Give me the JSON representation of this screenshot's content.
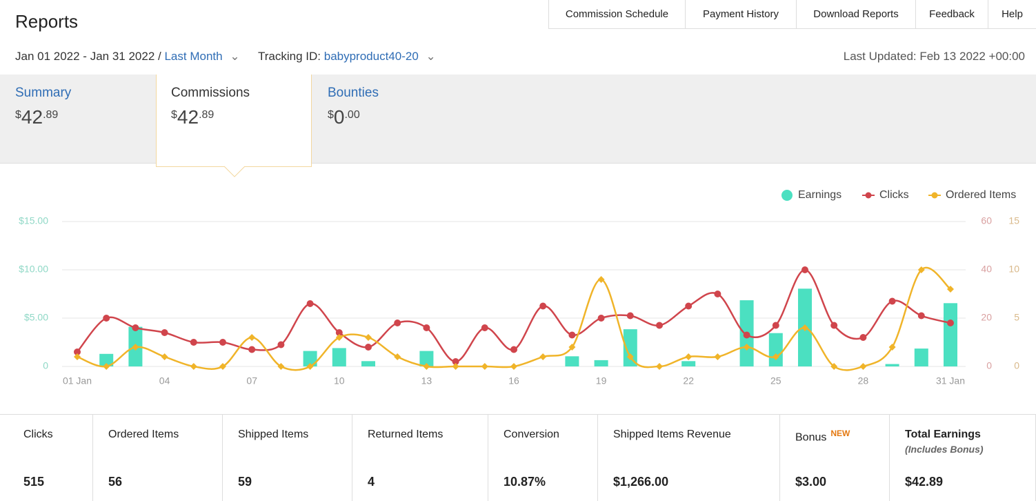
{
  "header": {
    "title": "Reports",
    "nav": [
      "Commission Schedule",
      "Payment History",
      "Download Reports",
      "Feedback",
      "Help"
    ]
  },
  "filters": {
    "date_range": "Jan 01 2022 - Jan 31 2022 /",
    "period": "Last Month",
    "tracking_label": "Tracking ID:",
    "tracking_id": "babyproduct40-20",
    "last_updated": "Last Updated: Feb 13 2022 +00:00"
  },
  "tabs": [
    {
      "name": "Summary",
      "currency": "$",
      "whole": "42",
      "cents": ".89"
    },
    {
      "name": "Commissions",
      "currency": "$",
      "whole": "42",
      "cents": ".89"
    },
    {
      "name": "Bounties",
      "currency": "$",
      "whole": "0",
      "cents": ".00"
    }
  ],
  "chart_data": {
    "type": "combo",
    "legend": "top-right",
    "grid": true,
    "x": [
      1,
      2,
      3,
      4,
      5,
      6,
      7,
      8,
      9,
      10,
      11,
      12,
      13,
      14,
      15,
      16,
      17,
      18,
      19,
      20,
      21,
      22,
      23,
      24,
      25,
      26,
      27,
      28,
      29,
      30,
      31
    ],
    "xlim": [
      1,
      31
    ],
    "xticks": [
      {
        "value": 1,
        "label": "01 Jan"
      },
      {
        "value": 4,
        "label": "04"
      },
      {
        "value": 7,
        "label": "07"
      },
      {
        "value": 10,
        "label": "10"
      },
      {
        "value": 13,
        "label": "13"
      },
      {
        "value": 16,
        "label": "16"
      },
      {
        "value": 19,
        "label": "19"
      },
      {
        "value": 22,
        "label": "22"
      },
      {
        "value": 25,
        "label": "25"
      },
      {
        "value": 28,
        "label": "28"
      },
      {
        "value": 31,
        "label": "31 Jan"
      }
    ],
    "ylim": [
      0,
      15
    ],
    "yticks": [
      0,
      {
        "value": 5,
        "label": "$5.00"
      },
      {
        "value": 10,
        "label": "$10.00"
      },
      {
        "value": 15,
        "label": "$15.00"
      }
    ],
    "y2lim": [
      0,
      60
    ],
    "y2ticks": [
      0,
      20,
      40,
      60
    ],
    "y3lim": [
      0,
      15
    ],
    "y3ticks": [
      0,
      5,
      10,
      15
    ],
    "series": [
      {
        "name": "Earnings",
        "type": "bar",
        "color": "#4be0c1",
        "values": [
          0,
          1.3,
          4.1,
          0,
          0,
          0,
          0,
          0,
          1.6,
          1.9,
          0.55,
          0,
          1.6,
          0,
          0,
          0,
          0,
          1.05,
          0.65,
          3.85,
          0,
          0.55,
          0,
          6.85,
          3.45,
          8.05,
          0,
          0,
          0.25,
          1.85,
          6.55
        ]
      },
      {
        "name": "Clicks",
        "type": "line",
        "axis": "y2",
        "color": "#d0454c",
        "values": [
          6,
          20,
          16,
          14,
          10,
          10,
          7,
          9,
          26,
          14,
          8,
          18,
          16,
          2,
          16,
          7,
          25,
          13,
          20,
          21,
          17,
          25,
          30,
          13,
          17,
          40,
          17,
          12,
          27,
          21,
          18
        ]
      },
      {
        "name": "Ordered Items",
        "type": "line",
        "axis": "y3",
        "color": "#f0b429",
        "values": [
          1,
          0,
          2,
          1,
          0,
          0,
          3,
          0,
          0,
          3,
          3,
          1,
          0,
          0,
          0,
          0,
          1,
          2,
          9,
          1,
          0,
          1,
          1,
          2,
          1,
          4,
          0,
          0,
          2,
          10,
          8
        ]
      }
    ]
  },
  "stats": [
    {
      "label": "Clicks",
      "value": "515"
    },
    {
      "label": "Ordered Items",
      "value": "56"
    },
    {
      "label": "Shipped Items",
      "value": "59"
    },
    {
      "label": "Returned Items",
      "value": "4"
    },
    {
      "label": "Conversion",
      "value": "10.87%"
    },
    {
      "label": "Shipped Items Revenue",
      "value": "$1,266.00"
    },
    {
      "label": "Bonus",
      "badge": "NEW",
      "value": "$3.00"
    },
    {
      "label": "Total Earnings",
      "note": "(Includes Bonus)",
      "value": "$42.89"
    }
  ]
}
